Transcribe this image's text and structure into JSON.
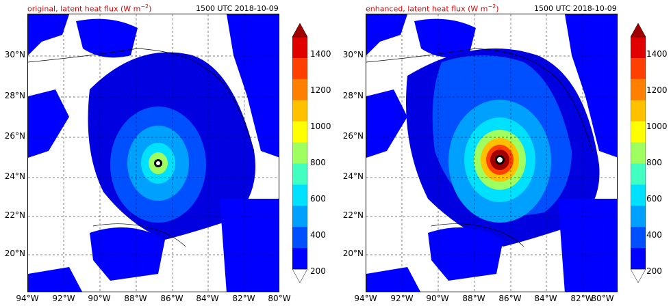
{
  "left_panel": {
    "title": "original, latent heat flux (W m",
    "title_sup": "−2",
    "title_close": ")",
    "time": "1500 UTC 2018-10-09"
  },
  "right_panel": {
    "title": "enhanced, latent heat flux (W m",
    "title_sup": "−2",
    "title_close": ")",
    "time": "1500 UTC 2018-10-09"
  },
  "lat_ticks": [
    "30°N",
    "28°N",
    "26°N",
    "24°N",
    "22°N",
    "20°N"
  ],
  "lon_ticks": [
    "94°W",
    "92°W",
    "90°W",
    "88°W",
    "86°W",
    "84°W",
    "82°W",
    "80°W"
  ],
  "colorbar_ticks": [
    "1400",
    "1200",
    "1000",
    "800",
    "600",
    "400",
    "200"
  ],
  "colorbar_colors": [
    "#00008f",
    "#0000ff",
    "#0050ff",
    "#00a0ff",
    "#00e0ff",
    "#40ffc0",
    "#a0ff60",
    "#ffff00",
    "#ffc000",
    "#ff8000",
    "#ff4000",
    "#e00000",
    "#a00000"
  ]
}
